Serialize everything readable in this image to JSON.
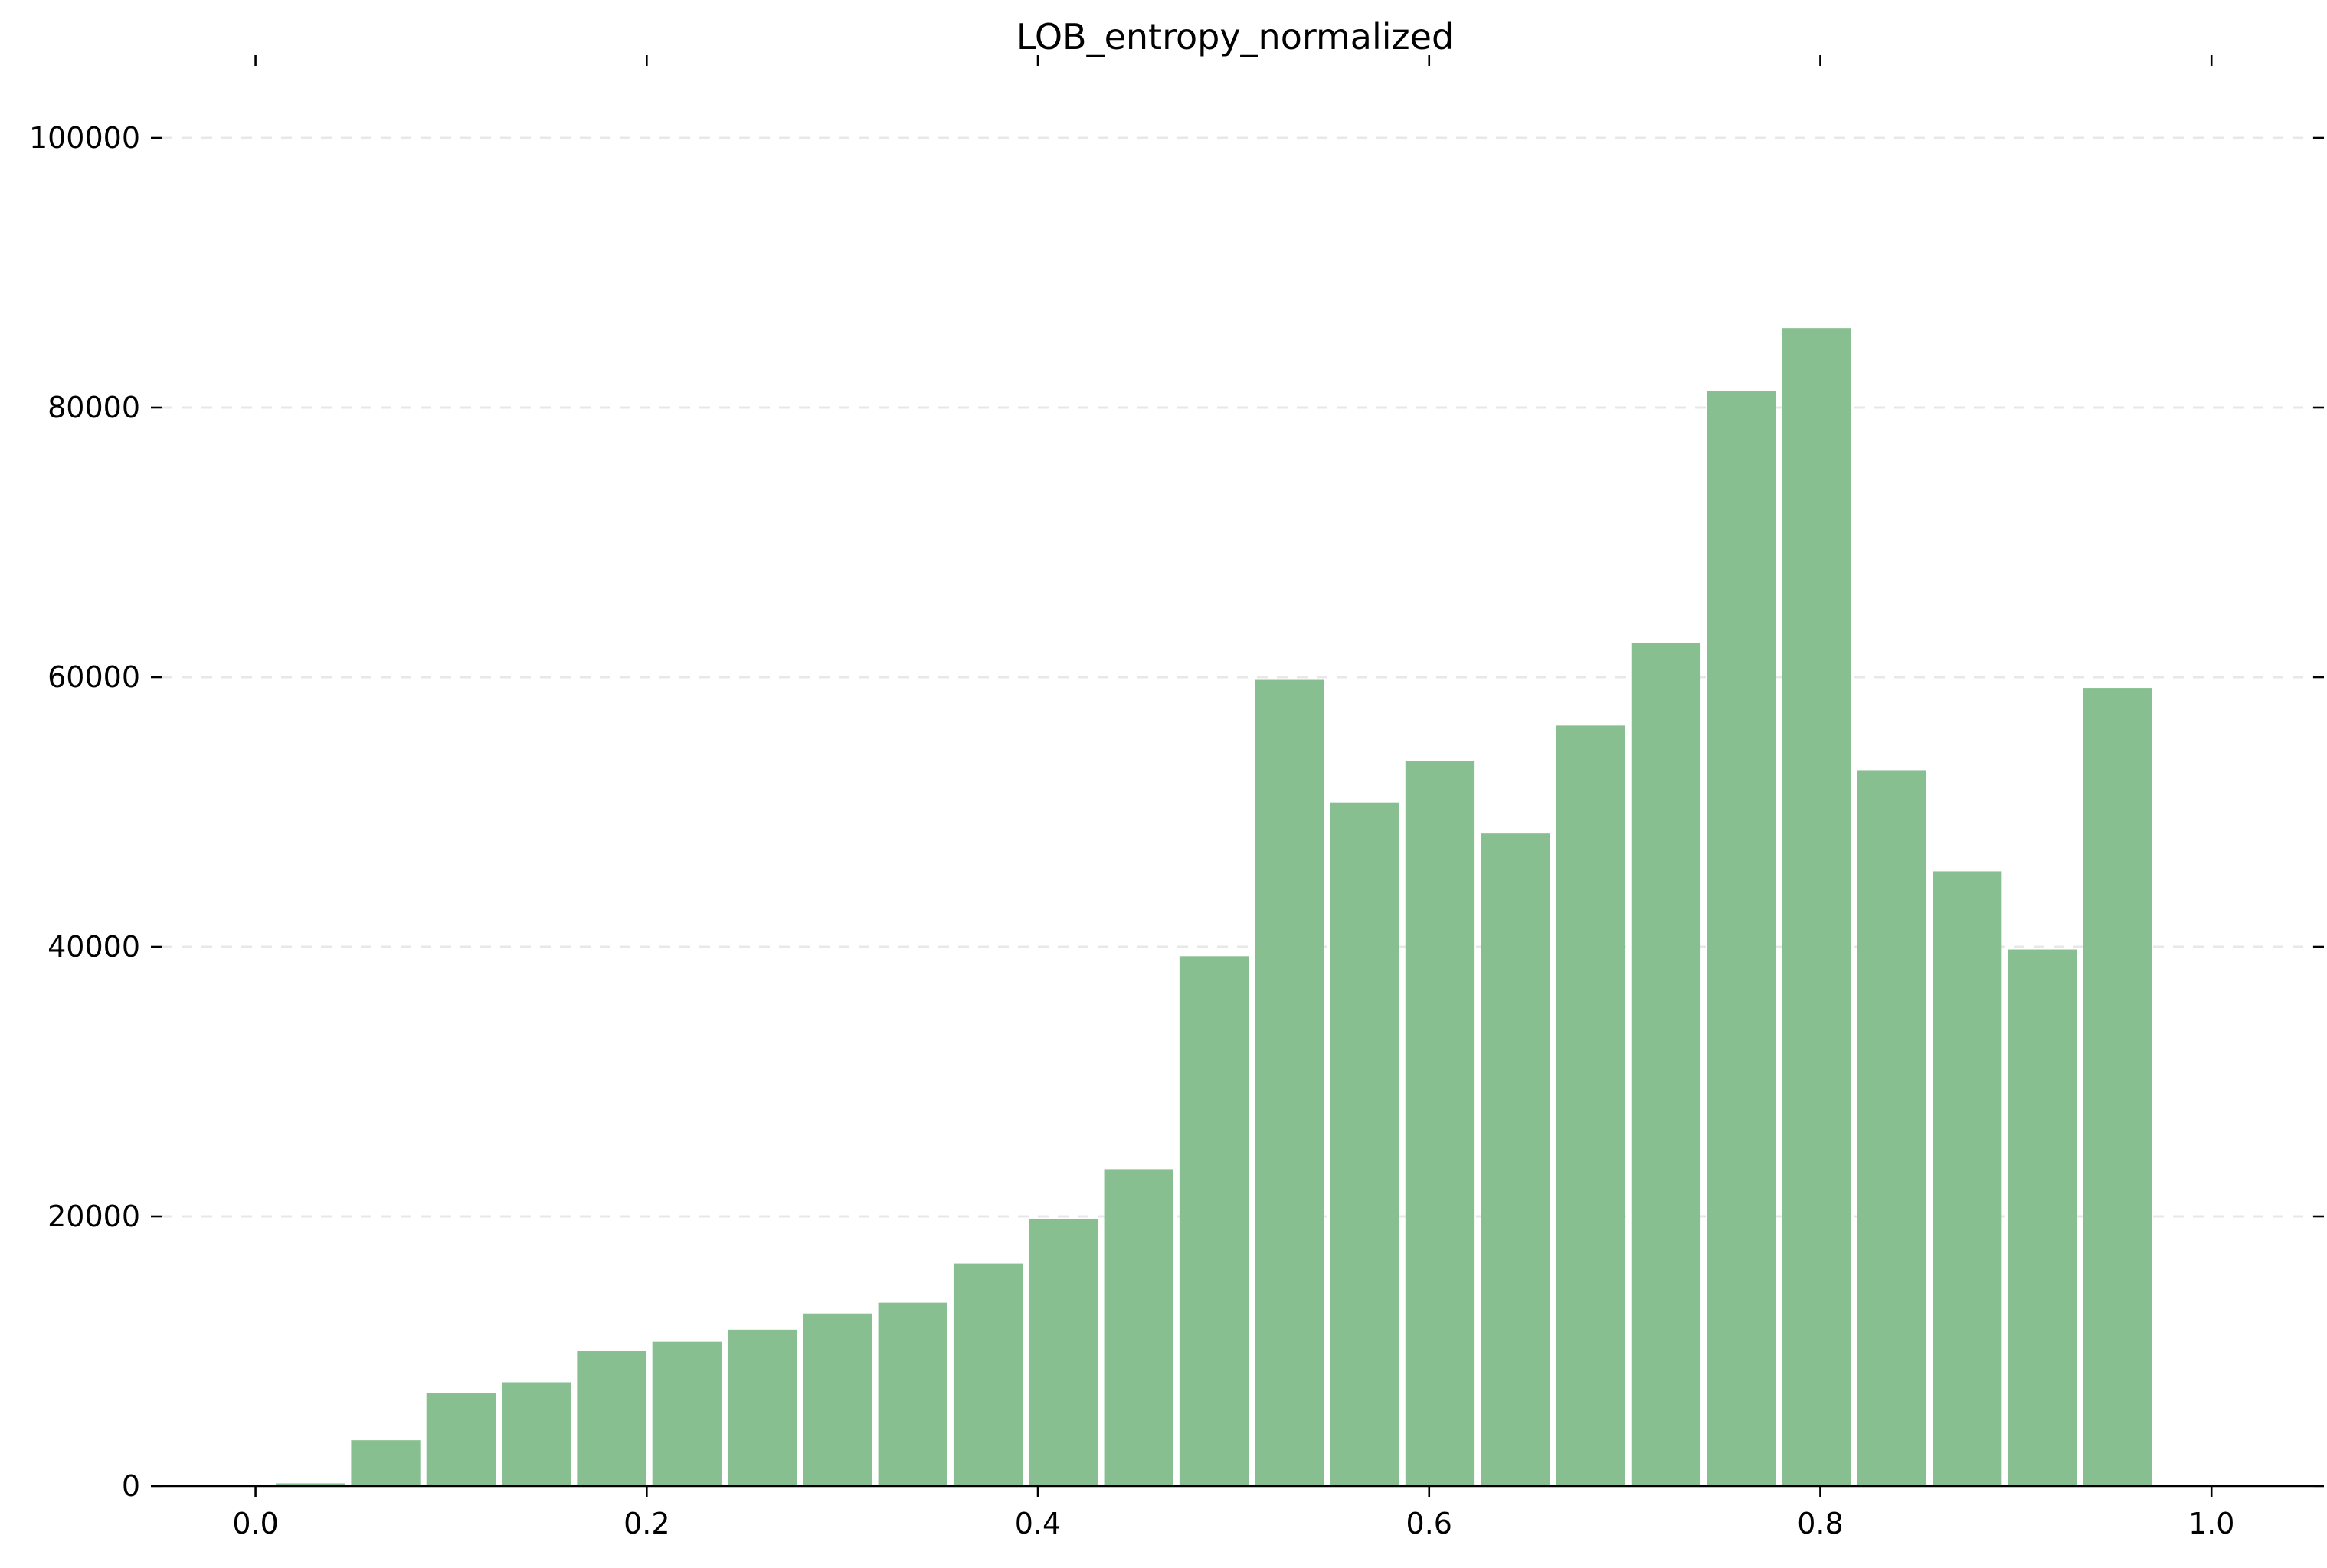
{
  "chart_data": {
    "type": "bar",
    "title": "LOB_entropy_normalized",
    "xlabel": "",
    "ylabel": "",
    "bin_width": 0.0385,
    "bins": [
      {
        "left": 0.0096,
        "count": 200
      },
      {
        "left": 0.0481,
        "count": 3400
      },
      {
        "left": 0.0866,
        "count": 6900
      },
      {
        "left": 0.1251,
        "count": 7700
      },
      {
        "left": 0.1636,
        "count": 10000
      },
      {
        "left": 0.2021,
        "count": 10700
      },
      {
        "left": 0.2406,
        "count": 11600
      },
      {
        "left": 0.2791,
        "count": 12800
      },
      {
        "left": 0.3176,
        "count": 13600
      },
      {
        "left": 0.3561,
        "count": 16500
      },
      {
        "left": 0.3946,
        "count": 19800
      },
      {
        "left": 0.4331,
        "count": 23500
      },
      {
        "left": 0.4716,
        "count": 39300
      },
      {
        "left": 0.5101,
        "count": 59800
      },
      {
        "left": 0.5486,
        "count": 50700
      },
      {
        "left": 0.5871,
        "count": 53800
      },
      {
        "left": 0.6256,
        "count": 48400
      },
      {
        "left": 0.6641,
        "count": 56400
      },
      {
        "left": 0.7026,
        "count": 62500
      },
      {
        "left": 0.7411,
        "count": 81200
      },
      {
        "left": 0.7796,
        "count": 85900
      },
      {
        "left": 0.8181,
        "count": 53100
      },
      {
        "left": 0.8566,
        "count": 45600
      },
      {
        "left": 0.8951,
        "count": 39800
      },
      {
        "left": 0.9336,
        "count": 59200
      }
    ],
    "bar_color": "#88bf91",
    "xlim": [
      -0.048,
      1.052
    ],
    "ylim": [
      0,
      100000
    ],
    "x_ticks": [
      0.0,
      0.2,
      0.4,
      0.6,
      0.8,
      1.0
    ],
    "x_tick_labels": [
      "0.0",
      "0.2",
      "0.4",
      "0.6",
      "0.8",
      "1.0"
    ],
    "y_ticks": [
      0,
      20000,
      40000,
      60000,
      80000,
      100000
    ],
    "y_tick_labels": [
      "0",
      "20000",
      "40000",
      "60000",
      "80000",
      "100000"
    ],
    "grid": "y-dashed",
    "legend": "none"
  }
}
